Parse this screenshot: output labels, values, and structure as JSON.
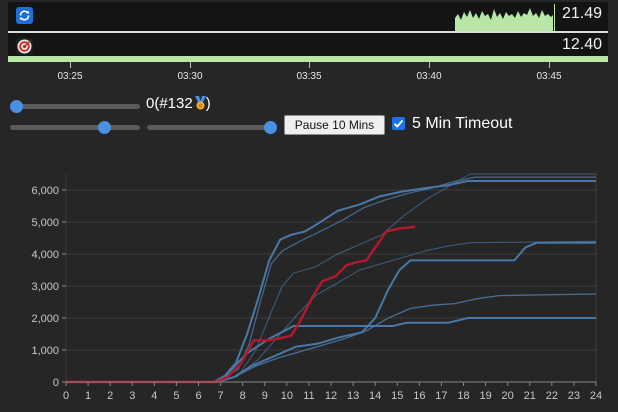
{
  "stats": [
    {
      "icon": "sync-icon",
      "value": "21.49"
    },
    {
      "icon": "target-icon",
      "value": "12.40"
    }
  ],
  "time_axis": {
    "ticks": [
      "03:25",
      "03:30",
      "03:35",
      "03:40",
      "03:45"
    ]
  },
  "controls": {
    "counter_value": "0",
    "rank_text": "(#132",
    "rank_close": ")",
    "medal_icon": "medal-icon",
    "pause_button": "Pause 10 Mins",
    "timeout_label": "5 Min Timeout",
    "timeout_checked": true,
    "slider_levels": [
      0.0,
      0.75,
      1.0
    ]
  },
  "colors": {
    "accent": "#4a90e2",
    "highlight_series": "#b5182e",
    "series": "#4a78a6"
  },
  "chart_data": {
    "type": "line",
    "xlim": [
      0,
      24
    ],
    "ylim": [
      0,
      6500
    ],
    "xticks": [
      "0",
      "1",
      "2",
      "3",
      "4",
      "5",
      "6",
      "7",
      "8",
      "9",
      "10",
      "11",
      "12",
      "13",
      "14",
      "15",
      "16",
      "17",
      "18",
      "19",
      "20",
      "21",
      "22",
      "23",
      "24"
    ],
    "yticks": [
      "0",
      "1,000",
      "2,000",
      "3,000",
      "4,000",
      "5,000",
      "6,000"
    ],
    "ytick_values": [
      0,
      1000,
      2000,
      3000,
      4000,
      5000,
      6000
    ],
    "grid": "horizontal",
    "series": [
      {
        "color": "#4a78a6",
        "width": 2,
        "opacity": 1,
        "points": [
          [
            0,
            0
          ],
          [
            6.7,
            0
          ],
          [
            7.2,
            200
          ],
          [
            7.7,
            600
          ],
          [
            8.2,
            1500
          ],
          [
            8.7,
            2600
          ],
          [
            9.2,
            3800
          ],
          [
            9.7,
            4450
          ],
          [
            10.2,
            4600
          ],
          [
            10.8,
            4700
          ],
          [
            11.3,
            4900
          ],
          [
            12.3,
            5350
          ],
          [
            13.3,
            5550
          ],
          [
            14.2,
            5800
          ],
          [
            15.2,
            5950
          ],
          [
            16.2,
            6050
          ],
          [
            17.3,
            6150
          ],
          [
            18.2,
            6280
          ],
          [
            24,
            6280
          ]
        ]
      },
      {
        "color": "#4a78a6",
        "width": 1.3,
        "opacity": 0.8,
        "points": [
          [
            0,
            0
          ],
          [
            6.8,
            0
          ],
          [
            7.8,
            400
          ],
          [
            8.3,
            1200
          ],
          [
            8.8,
            2500
          ],
          [
            9.3,
            3700
          ],
          [
            9.8,
            4100
          ],
          [
            10.6,
            4400
          ],
          [
            11.5,
            4700
          ],
          [
            12.5,
            5050
          ],
          [
            13.5,
            5450
          ],
          [
            14.5,
            5700
          ],
          [
            15.5,
            5900
          ],
          [
            16.5,
            6050
          ],
          [
            17.5,
            6250
          ],
          [
            18.5,
            6400
          ],
          [
            24,
            6400
          ]
        ]
      },
      {
        "color": "#4a78a6",
        "width": 1,
        "opacity": 0.7,
        "points": [
          [
            0,
            0
          ],
          [
            6.8,
            0
          ],
          [
            7.8,
            200
          ],
          [
            8.6,
            1000
          ],
          [
            9.3,
            2200
          ],
          [
            9.8,
            3000
          ],
          [
            10.3,
            3400
          ],
          [
            11.3,
            3600
          ],
          [
            12.3,
            4000
          ],
          [
            13.3,
            4300
          ],
          [
            14.3,
            4600
          ],
          [
            15.3,
            5200
          ],
          [
            16.3,
            5700
          ],
          [
            17.3,
            6100
          ],
          [
            18.3,
            6500
          ],
          [
            24,
            6500
          ]
        ]
      },
      {
        "color": "#4a78a6",
        "width": 1,
        "opacity": 0.7,
        "points": [
          [
            0,
            0
          ],
          [
            6.8,
            0
          ],
          [
            7.7,
            150
          ],
          [
            8.7,
            700
          ],
          [
            9.7,
            1500
          ],
          [
            10.6,
            2200
          ],
          [
            11.3,
            2700
          ],
          [
            12.3,
            3100
          ],
          [
            13.3,
            3500
          ],
          [
            14.3,
            3700
          ],
          [
            15.3,
            3900
          ],
          [
            16.3,
            4100
          ],
          [
            17.3,
            4250
          ],
          [
            18.3,
            4350
          ],
          [
            24,
            4400
          ]
        ]
      },
      {
        "color": "#4a78a6",
        "width": 2,
        "opacity": 1,
        "points": [
          [
            0,
            0
          ],
          [
            6.8,
            0
          ],
          [
            7.6,
            150
          ],
          [
            8.4,
            500
          ],
          [
            9.4,
            800
          ],
          [
            10.4,
            1100
          ],
          [
            11.4,
            1200
          ],
          [
            12.4,
            1400
          ],
          [
            13.4,
            1550
          ],
          [
            14.0,
            2000
          ],
          [
            14.6,
            2900
          ],
          [
            15.1,
            3500
          ],
          [
            15.6,
            3800
          ],
          [
            20.3,
            3800
          ],
          [
            20.8,
            4200
          ],
          [
            21.3,
            4350
          ],
          [
            24,
            4350
          ]
        ]
      },
      {
        "color": "#4a78a6",
        "width": 2,
        "opacity": 1,
        "points": [
          [
            0,
            0
          ],
          [
            6.8,
            0
          ],
          [
            7.3,
            250
          ],
          [
            8.2,
            900
          ],
          [
            9.2,
            1350
          ],
          [
            9.9,
            1600
          ],
          [
            10.3,
            1750
          ],
          [
            14.8,
            1750
          ],
          [
            15.4,
            1850
          ],
          [
            17.3,
            1850
          ],
          [
            18.2,
            2000
          ],
          [
            24,
            2000
          ]
        ]
      },
      {
        "color": "#4a78a6",
        "width": 1.3,
        "opacity": 0.9,
        "points": [
          [
            0,
            0
          ],
          [
            6.8,
            0
          ],
          [
            7.6,
            150
          ],
          [
            8.6,
            500
          ],
          [
            9.6,
            750
          ],
          [
            10.6,
            950
          ],
          [
            11.6,
            1150
          ],
          [
            12.6,
            1350
          ],
          [
            13.6,
            1600
          ],
          [
            14.6,
            2000
          ],
          [
            15.6,
            2300
          ],
          [
            16.6,
            2400
          ],
          [
            17.6,
            2450
          ],
          [
            18.6,
            2600
          ],
          [
            19.6,
            2700
          ],
          [
            24,
            2750
          ]
        ]
      },
      {
        "color": "#b5182e",
        "width": 2.4,
        "opacity": 1,
        "points": [
          [
            0,
            0
          ],
          [
            6.8,
            0
          ],
          [
            7.3,
            150
          ],
          [
            7.9,
            550
          ],
          [
            8.5,
            1300
          ],
          [
            9.1,
            1300
          ],
          [
            9.6,
            1350
          ],
          [
            10.2,
            1450
          ],
          [
            10.6,
            1900
          ],
          [
            11.2,
            2700
          ],
          [
            11.6,
            3150
          ],
          [
            12.2,
            3300
          ],
          [
            12.7,
            3650
          ],
          [
            13.2,
            3750
          ],
          [
            13.6,
            3800
          ],
          [
            14.0,
            4200
          ],
          [
            14.5,
            4700
          ],
          [
            15.1,
            4800
          ],
          [
            15.8,
            4850
          ]
        ]
      }
    ]
  }
}
